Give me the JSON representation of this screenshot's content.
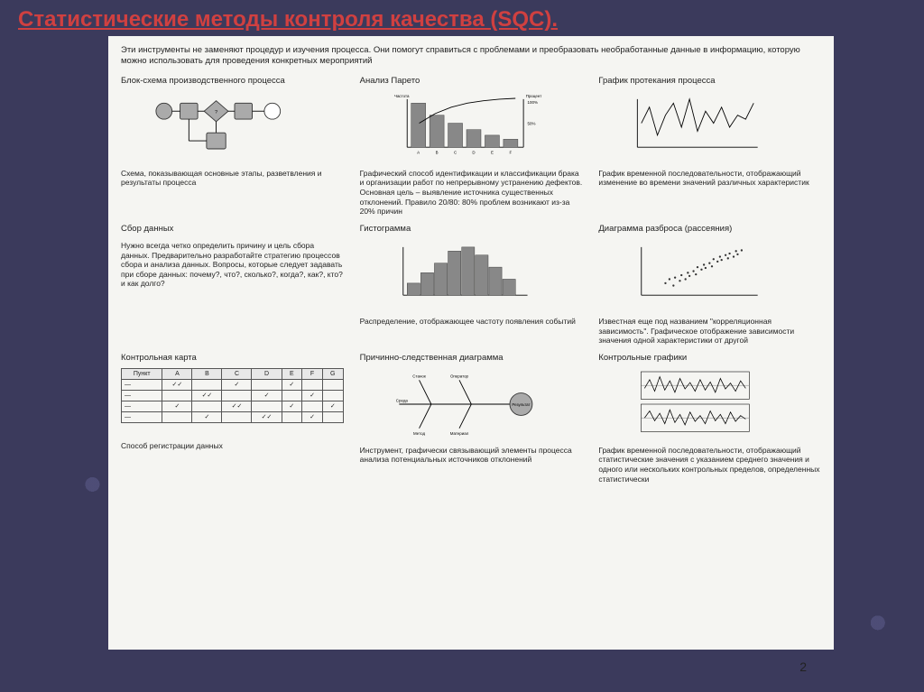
{
  "slide": {
    "title": "Статистические методы контроля качества (SQC).",
    "page_number": "2",
    "title_color": "#d04040",
    "bg_color": "#3b3a5c"
  },
  "intro": "Эти инструменты не заменяют процедур и изучения процесса. Они помогут справиться с проблемами и преобразовать необработанные данные в информацию, которую можно использовать для проведения конкретных мероприятий",
  "tools": {
    "flowchart": {
      "title": "Блок-схема производственного процесса",
      "desc": "Схема, показывающая основные этапы, разветвления и результаты процесса",
      "decision_mark": "?"
    },
    "pareto": {
      "title": "Анализ Парето",
      "ylabel": "Частота",
      "rlabel": "Процент",
      "rticks": [
        "100%",
        "50%"
      ],
      "categories": [
        "A",
        "B",
        "C",
        "D",
        "E",
        "F"
      ],
      "bar_values": [
        55,
        40,
        30,
        22,
        15,
        10
      ],
      "cum_points": [
        [
          15,
          40
        ],
        [
          35,
          28
        ],
        [
          55,
          20
        ],
        [
          75,
          15
        ],
        [
          95,
          12
        ],
        [
          115,
          10
        ],
        [
          135,
          9
        ]
      ],
      "desc": "Графический способ идентификации и классификации брака и организации работ по непрерывному устранению дефектов. Основная цель – выявление источника существенных отклонений. Правило 20/80: 80% проблем возникают из-за 20% причин"
    },
    "runchart": {
      "title": "График протекания процесса",
      "points": [
        5,
        40,
        15,
        20,
        25,
        55,
        35,
        30,
        45,
        15,
        55,
        45,
        65,
        10,
        75,
        50,
        85,
        25,
        95,
        40,
        105,
        20,
        115,
        45,
        125,
        30,
        135,
        35,
        145,
        15
      ],
      "desc": "График временной последовательности, отображающий изменение во времени значений различных характеристик"
    },
    "datacollect": {
      "title": "Сбор данных",
      "desc": "Нужно всегда четко определить причину и цель сбора данных. Предварительно разработайте стратегию процессов сбора и анализа данных. Вопросы, которые следует задавать при сборе данных: почему?, что?, сколько?, когда?, как?, кто? и как долго?"
    },
    "histogram": {
      "title": "Гистограмма",
      "values": [
        15,
        28,
        40,
        55,
        60,
        50,
        35,
        20
      ],
      "desc": "Распределение, отображающее частоту появления событий"
    },
    "scatter": {
      "title": "Диаграмма разброса (рассеяния)",
      "points": [
        [
          30,
          55
        ],
        [
          35,
          50
        ],
        [
          40,
          58
        ],
        [
          42,
          48
        ],
        [
          48,
          52
        ],
        [
          50,
          45
        ],
        [
          55,
          50
        ],
        [
          58,
          42
        ],
        [
          60,
          46
        ],
        [
          65,
          40
        ],
        [
          68,
          44
        ],
        [
          70,
          35
        ],
        [
          75,
          38
        ],
        [
          78,
          32
        ],
        [
          80,
          36
        ],
        [
          85,
          30
        ],
        [
          88,
          34
        ],
        [
          90,
          25
        ],
        [
          95,
          28
        ],
        [
          98,
          22
        ],
        [
          100,
          26
        ],
        [
          105,
          20
        ],
        [
          108,
          24
        ],
        [
          110,
          18
        ],
        [
          115,
          22
        ],
        [
          118,
          15
        ],
        [
          120,
          19
        ],
        [
          125,
          14
        ]
      ],
      "desc": "Известная еще под названием \"корреляционная зависимость\". Графическое отображение зависимости значения одной характеристики от другой"
    },
    "checksheet": {
      "title": "Контрольная карта",
      "header_first": "Пункт",
      "columns": [
        "A",
        "B",
        "C",
        "D",
        "E",
        "F",
        "G"
      ],
      "row_labels": [
        "—",
        "—",
        "—",
        "—"
      ],
      "marks": [
        [
          "✓✓",
          "",
          "✓",
          "",
          "✓",
          "",
          ""
        ],
        [
          "",
          "✓✓",
          "",
          "✓",
          "",
          "✓",
          ""
        ],
        [
          "✓",
          "",
          "✓✓",
          "",
          "✓",
          "",
          "✓"
        ],
        [
          "",
          "✓",
          "",
          "✓✓",
          "",
          "✓",
          ""
        ]
      ],
      "desc": "Способ регистрации данных"
    },
    "fishbone": {
      "title": "Причинно-следственная диаграмма",
      "labels": {
        "top1": "Станок",
        "top2": "Оператор",
        "bot1": "Метод",
        "bot2": "Материал",
        "left": "Среда",
        "result": "Результат"
      },
      "desc": "Инструмент, графически связывающий элементы процесса анализа потенциальных источников отклонений"
    },
    "controlcharts": {
      "title": "Контрольные графики",
      "series_a": [
        5,
        35,
        12,
        20,
        19,
        40,
        26,
        15,
        33,
        38,
        40,
        22,
        47,
        42,
        54,
        18,
        61,
        36,
        68,
        25,
        75,
        40,
        82,
        20,
        89,
        38,
        96,
        24,
        103,
        42,
        110,
        18,
        117,
        36,
        124,
        26,
        131,
        40,
        138,
        22,
        145,
        35
      ],
      "series_b": [
        5,
        30,
        12,
        18,
        19,
        35,
        26,
        22,
        33,
        40,
        40,
        16,
        47,
        38,
        54,
        24,
        61,
        42,
        68,
        20,
        75,
        36,
        82,
        26,
        89,
        40,
        96,
        18,
        103,
        35,
        110,
        24,
        117,
        40,
        124,
        20,
        131,
        36,
        138,
        26,
        145,
        32
      ],
      "desc": "График временной последовательности, отображающий статистические значения с указанием среднего значения и одного или нескольких контрольных пределов, определенных статистически"
    }
  },
  "style": {
    "bar_fill": "#888888",
    "axis_color": "#000000",
    "line_color": "#000000",
    "shape_fill": "#aaaaaa"
  }
}
